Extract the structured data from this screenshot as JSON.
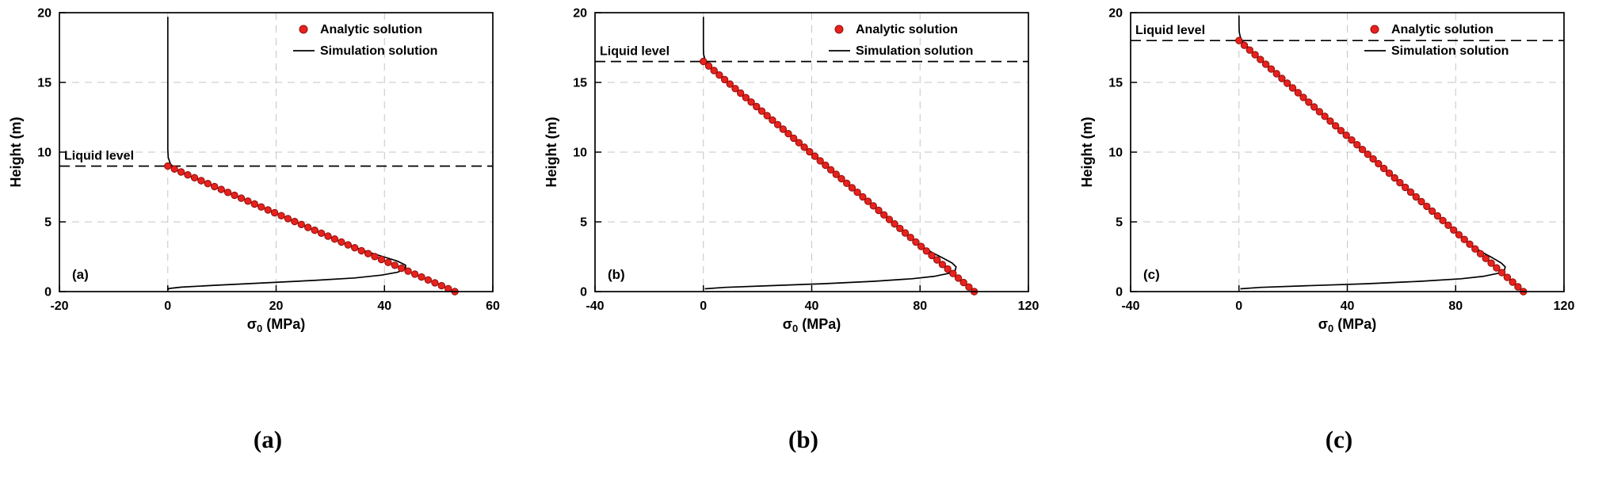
{
  "figure": {
    "background": "#ffffff"
  },
  "colors": {
    "analytic_fill": "#e8211d",
    "analytic_edge": "#8f0f0c",
    "simulation_line": "#000000",
    "grid": "#c6c6c6",
    "axis": "#000000",
    "liquid_line": "#000000",
    "text": "#000000"
  },
  "legend": {
    "analytic_label": "Analytic solution",
    "simulation_label": "Simulation solution"
  },
  "chart_data": [
    {
      "type": "line",
      "panel_label": "(a)",
      "caption": "(a)",
      "title": "",
      "xlabel": "σ0 (MPa)",
      "xlabel_parts": {
        "base": "σ",
        "sub": "0",
        "suffix": " (MPa)"
      },
      "ylabel": "Height (m)",
      "xlim": [
        -20,
        60
      ],
      "xticks": [
        -20,
        0,
        20,
        40,
        60
      ],
      "ylim": [
        0,
        20
      ],
      "yticks": [
        0,
        5,
        10,
        15,
        20
      ],
      "grid": "dashed",
      "legend_position": "top-right",
      "liquid_level": {
        "label": "Liquid level",
        "height_m": 9
      },
      "series": [
        {
          "name": "Analytic solution",
          "type": "scatter-linear",
          "from": [
            0,
            9
          ],
          "to": [
            53,
            0
          ],
          "n_markers": 44
        },
        {
          "name": "Simulation solution",
          "type": "line",
          "points": [
            [
              0,
              19.7
            ],
            [
              0,
              17
            ],
            [
              0,
              14
            ],
            [
              0,
              11.5
            ],
            [
              0,
              10.2
            ],
            [
              0.1,
              9.6
            ],
            [
              0.5,
              9.15
            ],
            [
              1.5,
              8.75
            ],
            [
              3.5,
              8.35
            ],
            [
              5.9,
              8.0
            ],
            [
              8.8,
              7.5
            ],
            [
              11.8,
              7.0
            ],
            [
              17.7,
              6.0
            ],
            [
              23.6,
              5.0
            ],
            [
              29.4,
              4.0
            ],
            [
              33.0,
              3.4
            ],
            [
              36.5,
              2.9
            ],
            [
              39.8,
              2.5
            ],
            [
              42.3,
              2.2
            ],
            [
              43.9,
              1.9
            ],
            [
              43.9,
              1.65
            ],
            [
              42.5,
              1.4
            ],
            [
              39.5,
              1.18
            ],
            [
              34.5,
              0.98
            ],
            [
              27.0,
              0.8
            ],
            [
              17.5,
              0.62
            ],
            [
              8.5,
              0.45
            ],
            [
              2.5,
              0.32
            ],
            [
              0.2,
              0.22
            ],
            [
              0,
              0.12
            ]
          ]
        }
      ]
    },
    {
      "type": "line",
      "panel_label": "(b)",
      "caption": "(b)",
      "title": "",
      "xlabel": "σ0 (MPa)",
      "xlabel_parts": {
        "base": "σ",
        "sub": "0",
        "suffix": " (MPa)"
      },
      "ylabel": "Height (m)",
      "xlim": [
        -40,
        120
      ],
      "xticks": [
        -40,
        0,
        40,
        80,
        120
      ],
      "ylim": [
        0,
        20
      ],
      "yticks": [
        0,
        5,
        10,
        15,
        20
      ],
      "grid": "dashed",
      "legend_position": "top-right",
      "liquid_level": {
        "label": "Liquid level",
        "height_m": 16.5
      },
      "series": [
        {
          "name": "Analytic solution",
          "type": "scatter-linear",
          "from": [
            0,
            16.5
          ],
          "to": [
            100,
            0
          ],
          "n_markers": 52
        },
        {
          "name": "Simulation solution",
          "type": "line",
          "points": [
            [
              0,
              19.7
            ],
            [
              0,
              18.3
            ],
            [
              0,
              17.4
            ],
            [
              0.1,
              17.0
            ],
            [
              0.5,
              16.7
            ],
            [
              1.5,
              16.35
            ],
            [
              3.5,
              16.0
            ],
            [
              6.1,
              15.6
            ],
            [
              9.1,
              15.0
            ],
            [
              15.2,
              14.0
            ],
            [
              21.2,
              13.0
            ],
            [
              27.3,
              12.0
            ],
            [
              33.3,
              11.0
            ],
            [
              39.4,
              10.0
            ],
            [
              45.5,
              9.0
            ],
            [
              51.5,
              8.0
            ],
            [
              57.6,
              7.0
            ],
            [
              63.6,
              6.0
            ],
            [
              69.7,
              5.0
            ],
            [
              75.8,
              4.0
            ],
            [
              80.0,
              3.3
            ],
            [
              84.5,
              2.8
            ],
            [
              88.5,
              2.4
            ],
            [
              91.8,
              2.05
            ],
            [
              93.3,
              1.78
            ],
            [
              93.0,
              1.52
            ],
            [
              90.5,
              1.3
            ],
            [
              85.5,
              1.1
            ],
            [
              77.0,
              0.92
            ],
            [
              63.0,
              0.74
            ],
            [
              44.0,
              0.56
            ],
            [
              24.0,
              0.42
            ],
            [
              8.0,
              0.3
            ],
            [
              0.5,
              0.2
            ]
          ]
        }
      ]
    },
    {
      "type": "line",
      "panel_label": "(c)",
      "caption": "(c)",
      "title": "",
      "xlabel": "σ0 (MPa)",
      "xlabel_parts": {
        "base": "σ",
        "sub": "0",
        "suffix": " (MPa)"
      },
      "ylabel": "Height (m)",
      "xlim": [
        -40,
        120
      ],
      "xticks": [
        -40,
        0,
        40,
        80,
        120
      ],
      "ylim": [
        0,
        20
      ],
      "yticks": [
        0,
        5,
        10,
        15,
        20
      ],
      "grid": "dashed",
      "legend_position": "top-right",
      "liquid_level": {
        "label": "Liquid level",
        "height_m": 18
      },
      "series": [
        {
          "name": "Analytic solution",
          "type": "scatter-linear",
          "from": [
            0,
            18
          ],
          "to": [
            105,
            0
          ],
          "n_markers": 54
        },
        {
          "name": "Simulation solution",
          "type": "line",
          "points": [
            [
              0,
              19.8
            ],
            [
              0,
              19.2
            ],
            [
              0.1,
              18.6
            ],
            [
              0.5,
              18.25
            ],
            [
              1.5,
              17.9
            ],
            [
              3.5,
              17.5
            ],
            [
              5.8,
              17.0
            ],
            [
              11.7,
              16.0
            ],
            [
              17.5,
              15.0
            ],
            [
              23.3,
              14.0
            ],
            [
              29.2,
              13.0
            ],
            [
              35.0,
              12.0
            ],
            [
              40.8,
              11.0
            ],
            [
              46.7,
              10.0
            ],
            [
              52.5,
              9.0
            ],
            [
              58.3,
              8.0
            ],
            [
              64.2,
              7.0
            ],
            [
              70.0,
              6.0
            ],
            [
              75.8,
              5.0
            ],
            [
              81.7,
              4.0
            ],
            [
              85.8,
              3.3
            ],
            [
              90.0,
              2.8
            ],
            [
              93.8,
              2.4
            ],
            [
              96.8,
              2.05
            ],
            [
              98.3,
              1.78
            ],
            [
              98.0,
              1.52
            ],
            [
              95.5,
              1.3
            ],
            [
              90.5,
              1.1
            ],
            [
              82.0,
              0.92
            ],
            [
              67.0,
              0.74
            ],
            [
              47.0,
              0.56
            ],
            [
              25.0,
              0.42
            ],
            [
              8.0,
              0.3
            ],
            [
              0.5,
              0.2
            ]
          ]
        }
      ]
    }
  ]
}
